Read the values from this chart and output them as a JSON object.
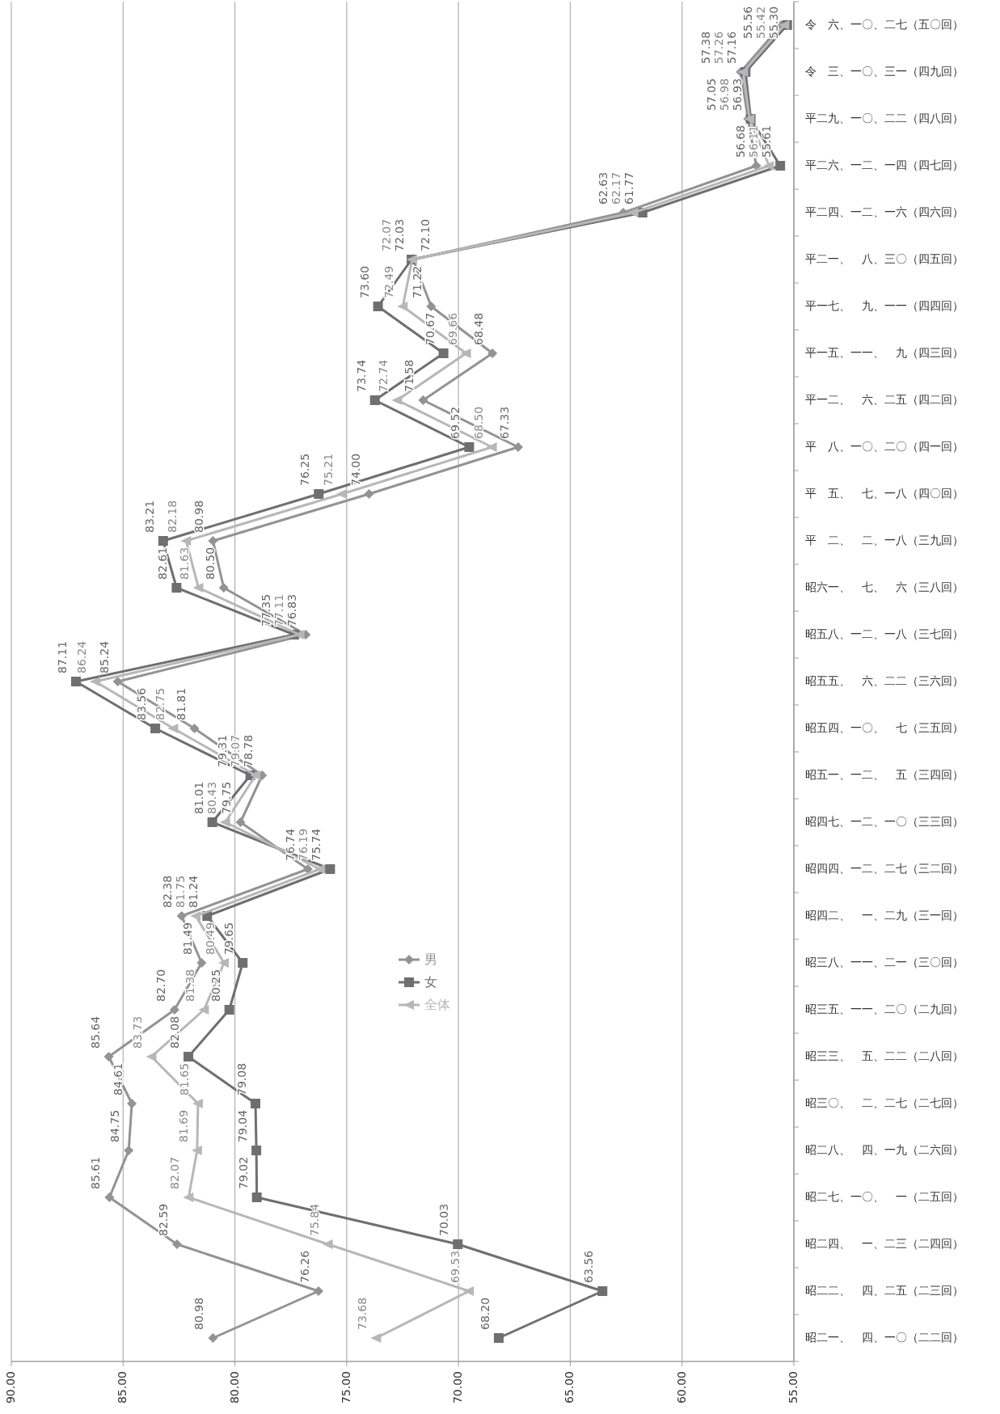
{
  "chart_data": {
    "type": "line",
    "orientation": "horizontal",
    "categories": [
      "令　六、一〇、二七（五〇回）",
      "令　三、一〇、三一（四九回）",
      "平二九、一〇、二二（四八回）",
      "平二六、一二、一四（四七回）",
      "平二四、一二、一六（四六回）",
      "平二一、　八、三〇（四五回）",
      "平一七、　九、一一（四四回）",
      "平一五、一一、　九（四三回）",
      "平一二、　六、二五（四二回）",
      "平　八、一〇、二〇（四一回）",
      "平　五、　七、一八（四〇回）",
      "平　二、　二、一八（三九回）",
      "昭六一、　七、　六（三八回）",
      "昭五八、一二、一八（三七回）",
      "昭五五、　六、二二（三六回）",
      "昭五四、一〇、　七（三五回）",
      "昭五一、一二、　五（三四回）",
      "昭四七、一二、一〇（三三回）",
      "昭四四、一二、二七（三二回）",
      "昭四二、　一、二九（三一回）",
      "昭三八、一一、二一（三〇回）",
      "昭三五、一一、二〇（二九回）",
      "昭三三、　五、二二（二八回）",
      "昭三〇、　二、二七（二七回）",
      "昭二八、　四、一九（二六回）",
      "昭二七、一〇、　一（二五回）",
      "昭二四、　一、二三（二四回）",
      "昭二二、　四、二五（二三回）",
      "昭二一、　四、一〇（二二回）"
    ],
    "series": [
      {
        "name": "男",
        "color": "#939393",
        "marker": "diamond",
        "values": [
          55.56,
          57.38,
          57.05,
          56.68,
          62.63,
          72.03,
          71.22,
          68.48,
          71.58,
          67.33,
          74.0,
          80.98,
          80.5,
          76.83,
          85.24,
          81.81,
          78.78,
          79.75,
          76.74,
          82.38,
          81.49,
          82.7,
          85.64,
          84.61,
          84.75,
          85.61,
          82.59,
          76.26,
          80.98
        ],
        "value_labels": [
          "55.56",
          "57.38",
          "57.05",
          "56.68",
          "62.63",
          "72.03",
          "71.22",
          "68.48",
          "71.58",
          "67.33",
          "74.00",
          "80.98",
          "80.50",
          "76.83",
          "85.24",
          "81.81",
          "78.78",
          "79.75",
          "76.74",
          "82.38",
          "81.49",
          "82.70",
          "85.64",
          "84.61",
          "84.75",
          "85.61",
          "82.59",
          "76.26",
          "80.98"
        ]
      },
      {
        "name": "女",
        "color": "#6f6f71",
        "marker": "square",
        "values": [
          55.3,
          57.16,
          56.93,
          55.61,
          61.77,
          72.1,
          73.6,
          70.67,
          73.74,
          69.52,
          76.25,
          83.21,
          82.61,
          77.35,
          87.11,
          83.56,
          79.31,
          81.01,
          75.74,
          81.24,
          79.65,
          80.25,
          82.08,
          79.08,
          79.04,
          79.02,
          70.03,
          63.56,
          68.2
        ],
        "value_labels": [
          "55.30",
          "57.16",
          "56.93",
          "55.61",
          "61.77",
          "72.10",
          "73.60",
          "70.67",
          "73.74",
          "69.52",
          "76.25",
          "83.21",
          "82.61",
          "77.35",
          "87.11",
          "83.56",
          "79.31",
          "81.01",
          "75.74",
          "81.24",
          "79.65",
          "80.25",
          "82.08",
          "79.08",
          "79.04",
          "79.02",
          "70.03",
          "63.56",
          "68.20"
        ]
      },
      {
        "name": "全体",
        "color": "#b7b7b9",
        "marker": "triangle",
        "values": [
          55.42,
          57.26,
          56.98,
          56.11,
          62.17,
          72.07,
          72.49,
          69.66,
          72.74,
          68.5,
          75.21,
          82.18,
          81.63,
          77.11,
          86.24,
          82.75,
          79.07,
          80.43,
          76.19,
          81.75,
          80.49,
          81.38,
          83.73,
          81.65,
          81.69,
          82.07,
          75.84,
          69.53,
          73.68
        ],
        "value_labels": [
          "55.42",
          "57.26",
          "56.98",
          "56.11",
          "62.17",
          "72.07",
          "72.49",
          "69.66",
          "72.74",
          "68.50",
          "75.21",
          "82.18",
          "81.63",
          "77.11",
          "86.24",
          "82.75",
          "79.07",
          "80.43",
          "76.19",
          "81.75",
          "80.49",
          "81.38",
          "83.73",
          "81.65",
          "81.69",
          "82.07",
          "75.84",
          "69.53",
          "73.68"
        ]
      }
    ],
    "xlim": [
      90,
      55
    ],
    "xticks": [
      {
        "value": 90,
        "label": "90.00"
      },
      {
        "value": 85,
        "label": "85.00"
      },
      {
        "value": 80,
        "label": "80.00"
      },
      {
        "value": 75,
        "label": "75.00"
      },
      {
        "value": 70,
        "label": "70.00"
      },
      {
        "value": 65,
        "label": "65.00"
      },
      {
        "value": 60,
        "label": "60.00"
      },
      {
        "value": 55,
        "label": "55.00"
      }
    ],
    "grid": "x",
    "legend": "bottom"
  }
}
